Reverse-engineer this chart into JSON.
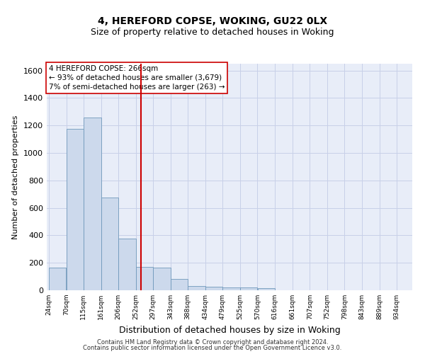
{
  "title1": "4, HEREFORD COPSE, WOKING, GU22 0LX",
  "title2": "Size of property relative to detached houses in Woking",
  "xlabel": "Distribution of detached houses by size in Woking",
  "ylabel": "Number of detached properties",
  "bins": [
    24,
    70,
    115,
    161,
    206,
    252,
    297,
    343,
    388,
    434,
    479,
    525,
    570,
    616,
    661,
    707,
    752,
    798,
    843,
    889,
    934
  ],
  "counts": [
    165,
    1175,
    1260,
    675,
    375,
    170,
    165,
    80,
    30,
    25,
    20,
    20,
    15,
    0,
    0,
    0,
    0,
    0,
    0,
    0
  ],
  "bar_color": "#ccd9ec",
  "bar_edge_color": "#7099bb",
  "vline_x": 266,
  "vline_color": "#cc0000",
  "ylim": [
    0,
    1650
  ],
  "yticks": [
    0,
    200,
    400,
    600,
    800,
    1000,
    1200,
    1400,
    1600
  ],
  "annotation_line1": "4 HEREFORD COPSE: 266sqm",
  "annotation_line2": "← 93% of detached houses are smaller (3,679)",
  "annotation_line3": "7% of semi-detached houses are larger (263) →",
  "footer1": "Contains HM Land Registry data © Crown copyright and database right 2024.",
  "footer2": "Contains public sector information licensed under the Open Government Licence v3.0.",
  "grid_color": "#c8d0e8",
  "background_color": "#e8edf8",
  "title1_fontsize": 10,
  "title2_fontsize": 9,
  "ylabel_fontsize": 8,
  "xlabel_fontsize": 9,
  "ytick_fontsize": 8,
  "xtick_fontsize": 6.5
}
